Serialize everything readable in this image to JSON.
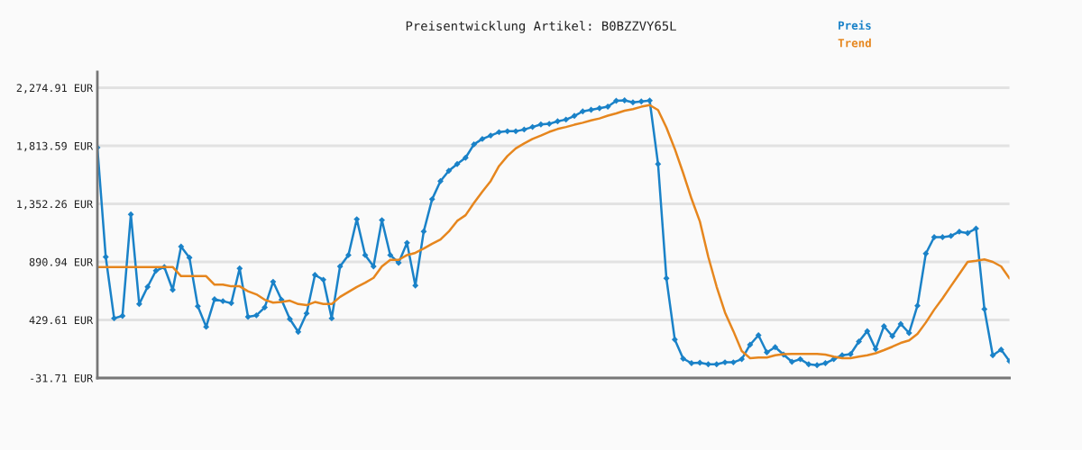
{
  "chart_data": {
    "type": "line",
    "title": "Preisentwicklung Artikel: B0BZZVY65L",
    "categories": [
      null,
      null,
      null,
      null,
      null,
      null,
      null,
      null,
      null,
      null,
      null,
      null,
      null,
      null,
      null,
      null,
      null,
      null,
      null,
      null,
      null,
      null,
      null,
      null,
      null,
      null,
      null,
      null,
      null,
      null,
      null,
      null,
      null,
      null,
      null,
      null,
      null,
      null,
      null,
      null,
      null,
      null,
      null,
      null,
      null,
      null,
      null,
      null,
      null,
      null,
      null,
      null,
      null,
      null,
      null,
      null,
      null,
      null,
      null,
      null,
      null,
      null,
      null,
      null,
      null,
      null,
      null,
      null,
      null,
      null,
      null,
      null,
      null,
      null,
      null,
      null,
      null,
      null,
      null,
      null,
      null,
      null,
      null,
      null,
      null,
      null,
      null,
      null,
      null,
      null,
      null,
      null,
      null,
      null,
      null,
      null,
      null,
      null,
      null,
      null,
      null,
      null,
      null,
      null,
      null,
      null,
      null,
      null,
      null,
      null
    ],
    "series": [
      {
        "name": "Preis",
        "color": "#1a82c8",
        "marker": "diamond",
        "values": [
          1800,
          930,
          443,
          462,
          1269,
          556,
          692,
          821,
          850,
          669,
          1013,
          925,
          538,
          375,
          594,
          579,
          563,
          839,
          455,
          466,
          529,
          733,
          590,
          437,
          335,
          482,
          787,
          749,
          443,
          855,
          945,
          1230,
          945,
          855,
          1223,
          945,
          884,
          1042,
          703,
          1133,
          1389,
          1533,
          1615,
          1669,
          1719,
          1825,
          1868,
          1895,
          1922,
          1929,
          1929,
          1943,
          1963,
          1983,
          1988,
          2008,
          2022,
          2051,
          2087,
          2100,
          2112,
          2125,
          2171,
          2175,
          2159,
          2166,
          2173,
          1669,
          760,
          274,
          122,
          86,
          90,
          77,
          77,
          93,
          93,
          118,
          233,
          308,
          172,
          213,
          154,
          97,
          118,
          77,
          70,
          86,
          118,
          149,
          158,
          258,
          341,
          199,
          380,
          301,
          398,
          326,
          543,
          957,
          1088,
          1088,
          1097,
          1131,
          1120,
          1156,
          516,
          149,
          194,
          102
        ]
      },
      {
        "name": "Trend",
        "color": "#e6861e",
        "marker": "none",
        "values": [
          850,
          850,
          850,
          850,
          850,
          850,
          850,
          850,
          850,
          850,
          778,
          778,
          778,
          778,
          710,
          710,
          697,
          697,
          658,
          633,
          590,
          567,
          572,
          583,
          556,
          547,
          572,
          556,
          556,
          613,
          652,
          692,
          726,
          764,
          855,
          907,
          907,
          945,
          963,
          997,
          1035,
          1069,
          1133,
          1217,
          1262,
          1359,
          1449,
          1533,
          1653,
          1732,
          1793,
          1832,
          1868,
          1895,
          1924,
          1947,
          1963,
          1981,
          1997,
          2015,
          2031,
          2053,
          2071,
          2092,
          2105,
          2124,
          2137,
          2098,
          1958,
          1789,
          1597,
          1393,
          1212,
          932,
          694,
          489,
          341,
          183,
          126,
          131,
          131,
          149,
          158,
          160,
          160,
          160,
          160,
          154,
          138,
          126,
          126,
          138,
          149,
          165,
          190,
          217,
          247,
          267,
          319,
          409,
          511,
          601,
          699,
          794,
          891,
          900,
          911,
          891,
          855,
          760
        ]
      }
    ],
    "ylim": [
      -31.71,
      2400
    ],
    "yticks": [
      {
        "value": -31.71,
        "label": "-31.71 EUR"
      },
      {
        "value": 429.61,
        "label": "429.61 EUR"
      },
      {
        "value": 890.94,
        "label": "890.94 EUR"
      },
      {
        "value": 1352.26,
        "label": "1,352.26 EUR"
      },
      {
        "value": 1813.59,
        "label": "1,813.59 EUR"
      },
      {
        "value": 2274.91,
        "label": "2,274.91 EUR"
      }
    ],
    "grid": "y",
    "legend": "top right",
    "line_style": "solid"
  }
}
